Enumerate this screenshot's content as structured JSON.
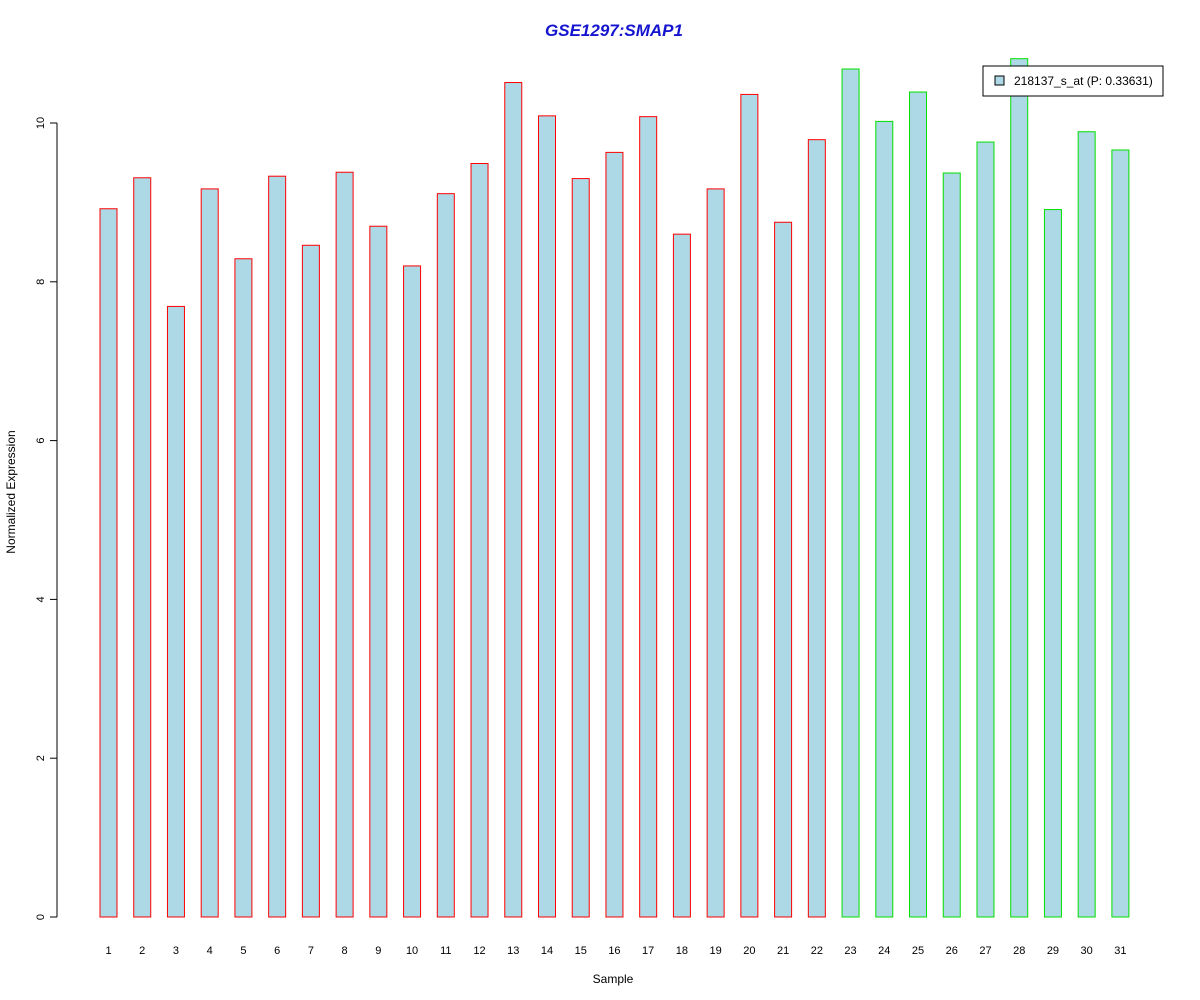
{
  "chart_data": {
    "type": "bar",
    "title": "GSE1297:SMAP1",
    "xlabel": "Sample",
    "ylabel": "Normalized Expression",
    "ylim": [
      0,
      10.9
    ],
    "yticks": [
      0,
      2,
      4,
      6,
      8,
      10
    ],
    "categories": [
      "1",
      "2",
      "3",
      "4",
      "5",
      "6",
      "7",
      "8",
      "9",
      "10",
      "11",
      "12",
      "13",
      "14",
      "15",
      "16",
      "17",
      "18",
      "19",
      "20",
      "21",
      "22",
      "23",
      "24",
      "25",
      "26",
      "27",
      "28",
      "29",
      "30",
      "31"
    ],
    "values": [
      8.92,
      9.31,
      7.69,
      9.17,
      8.29,
      9.33,
      8.46,
      9.38,
      8.7,
      8.2,
      9.11,
      9.49,
      10.51,
      10.09,
      9.3,
      9.63,
      10.08,
      8.6,
      9.17,
      10.36,
      8.75,
      9.79,
      10.68,
      10.02,
      10.39,
      9.37,
      9.76,
      10.81,
      8.91,
      9.89,
      9.66
    ],
    "group_of_sample": [
      1,
      1,
      1,
      1,
      1,
      1,
      1,
      1,
      1,
      1,
      1,
      1,
      1,
      1,
      1,
      1,
      1,
      1,
      1,
      1,
      1,
      1,
      2,
      2,
      2,
      2,
      2,
      2,
      2,
      2,
      2
    ],
    "legend": {
      "label": "218137_s_at (P: 0.33631)",
      "placement": "top-right"
    },
    "grid": false
  },
  "colors": {
    "title": "#1515d0",
    "bar_fill": "#add8e6",
    "group1_border": "#ff0000",
    "group2_border": "#00e000",
    "axis": "#000000"
  }
}
